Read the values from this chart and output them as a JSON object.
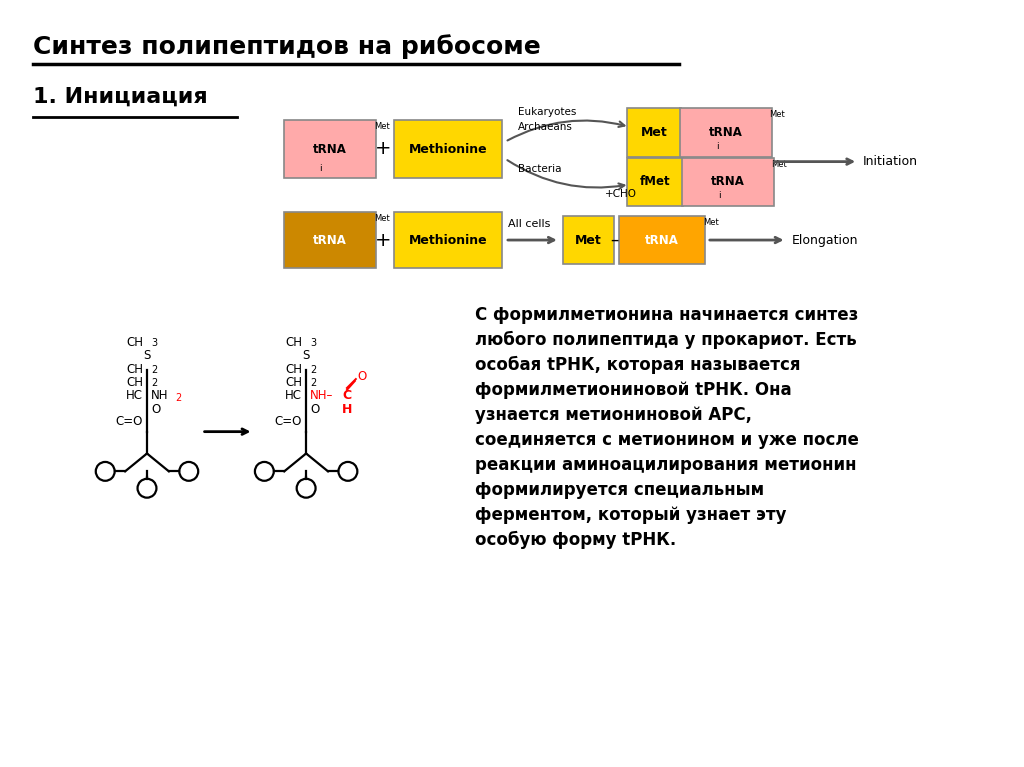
{
  "title": "Синтез полипептидов на рибосоме",
  "subtitle": "1. Инициация",
  "bg_color": "#ffffff",
  "text_block": "С формилметионина начинается синтез\nлюбого полипептида у прокариот. Есть\nособая tРНК, которая называется\nформилметиониновой tРНК. Она\nузнается метиониновой АРС,\nсоединяется с метионином и уже после\nреакции аминоацилирования метионин\nформилируется специальным\nферментом, который узнает эту\nособую форму tРНК.",
  "yellow_color": "#FFD700",
  "pink_color": "#FFAAAA",
  "orange_color": "#FFA500",
  "dark_orange_color": "#CC8800"
}
